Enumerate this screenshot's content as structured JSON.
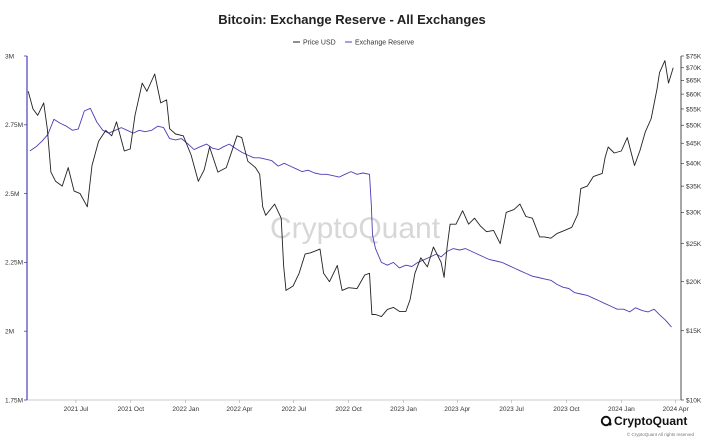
{
  "chart_data": {
    "type": "line",
    "title": "Bitcoin: Exchange Reserve - All Exchanges",
    "legend": [
      "Price USD",
      "Exchange Reserve"
    ],
    "legend_position": "top-center",
    "x_ticks": [
      "2021 Jul",
      "2021 Oct",
      "2022 Jan",
      "2022 Apr",
      "2022 Jul",
      "2022 Oct",
      "2023 Jan",
      "2023 Apr",
      "2023 Jul",
      "2023 Oct",
      "2024 Jan",
      "2024 Apr"
    ],
    "y_left_ticks": [
      "3M",
      "2.75M",
      "2.5M",
      "2.25M",
      "2M",
      "1.75M"
    ],
    "y_right_ticks": [
      "$75K",
      "$70K",
      "$65K",
      "$60K",
      "$55K",
      "$50K",
      "$45K",
      "$40K",
      "$35K",
      "$30K",
      "$25K",
      "$20K",
      "$15K",
      "$10K"
    ],
    "ylim_left": [
      1750000,
      3000000
    ],
    "ylim_right": [
      10000,
      75000
    ],
    "y_right_scale": "log",
    "grid": false,
    "series": [
      {
        "name": "Exchange Reserve",
        "axis": "left",
        "color": "#4b3fb8",
        "x": [
          "2021-04-15",
          "2021-04-25",
          "2021-05-05",
          "2021-05-15",
          "2021-05-25",
          "2021-06-05",
          "2021-06-15",
          "2021-06-25",
          "2021-07-05",
          "2021-07-15",
          "2021-07-25",
          "2021-08-05",
          "2021-08-15",
          "2021-08-25",
          "2021-09-05",
          "2021-09-15",
          "2021-09-25",
          "2021-10-05",
          "2021-10-15",
          "2021-10-25",
          "2021-11-05",
          "2021-11-15",
          "2021-11-25",
          "2021-12-05",
          "2021-12-15",
          "2021-12-25",
          "2022-01-05",
          "2022-01-15",
          "2022-01-25",
          "2022-02-05",
          "2022-02-15",
          "2022-02-25",
          "2022-03-05",
          "2022-03-15",
          "2022-03-25",
          "2022-04-05",
          "2022-04-15",
          "2022-04-25",
          "2022-05-05",
          "2022-05-15",
          "2022-05-25",
          "2022-06-05",
          "2022-06-15",
          "2022-06-25",
          "2022-07-05",
          "2022-07-15",
          "2022-07-25",
          "2022-08-05",
          "2022-08-15",
          "2022-08-25",
          "2022-09-05",
          "2022-09-15",
          "2022-09-25",
          "2022-10-05",
          "2022-10-15",
          "2022-10-25",
          "2022-11-05",
          "2022-11-08",
          "2022-11-10",
          "2022-11-15",
          "2022-11-25",
          "2022-12-05",
          "2022-12-15",
          "2022-12-25",
          "2023-01-05",
          "2023-01-15",
          "2023-01-25",
          "2023-02-05",
          "2023-02-15",
          "2023-02-25",
          "2023-03-05",
          "2023-03-15",
          "2023-03-25",
          "2023-04-05",
          "2023-04-15",
          "2023-04-25",
          "2023-05-05",
          "2023-05-15",
          "2023-05-25",
          "2023-06-05",
          "2023-06-15",
          "2023-06-25",
          "2023-07-05",
          "2023-07-15",
          "2023-07-25",
          "2023-08-05",
          "2023-08-15",
          "2023-08-25",
          "2023-09-05",
          "2023-09-15",
          "2023-09-25",
          "2023-10-05",
          "2023-10-15",
          "2023-10-25",
          "2023-11-05",
          "2023-11-15",
          "2023-11-25",
          "2023-12-05",
          "2023-12-15",
          "2023-12-25",
          "2024-01-05",
          "2024-01-15",
          "2024-01-25",
          "2024-02-05",
          "2024-02-15",
          "2024-02-25",
          "2024-03-05",
          "2024-03-15",
          "2024-03-25"
        ],
        "values": [
          2655000,
          2670000,
          2690000,
          2715000,
          2770000,
          2755000,
          2745000,
          2730000,
          2735000,
          2800000,
          2810000,
          2760000,
          2730000,
          2720000,
          2730000,
          2740000,
          2730000,
          2720000,
          2730000,
          2725000,
          2730000,
          2745000,
          2740000,
          2700000,
          2695000,
          2700000,
          2680000,
          2660000,
          2670000,
          2680000,
          2665000,
          2660000,
          2670000,
          2680000,
          2665000,
          2650000,
          2640000,
          2630000,
          2630000,
          2625000,
          2620000,
          2600000,
          2610000,
          2600000,
          2590000,
          2580000,
          2585000,
          2575000,
          2570000,
          2570000,
          2565000,
          2560000,
          2570000,
          2580000,
          2570000,
          2575000,
          2570000,
          2460000,
          2350000,
          2300000,
          2250000,
          2240000,
          2250000,
          2230000,
          2240000,
          2235000,
          2250000,
          2260000,
          2270000,
          2280000,
          2270000,
          2290000,
          2300000,
          2295000,
          2300000,
          2290000,
          2280000,
          2270000,
          2260000,
          2255000,
          2250000,
          2240000,
          2230000,
          2220000,
          2210000,
          2200000,
          2195000,
          2190000,
          2185000,
          2170000,
          2160000,
          2155000,
          2140000,
          2135000,
          2130000,
          2120000,
          2110000,
          2100000,
          2090000,
          2080000,
          2080000,
          2070000,
          2085000,
          2075000,
          2070000,
          2080000,
          2060000,
          2040000,
          2015000
        ]
      },
      {
        "name": "Price USD",
        "axis": "right",
        "color": "#222222",
        "x": [
          "2021-04-12",
          "2021-04-20",
          "2021-04-28",
          "2021-05-08",
          "2021-05-14",
          "2021-05-20",
          "2021-05-28",
          "2021-06-08",
          "2021-06-18",
          "2021-06-28",
          "2021-07-08",
          "2021-07-20",
          "2021-07-28",
          "2021-08-08",
          "2021-08-20",
          "2021-08-30",
          "2021-09-07",
          "2021-09-20",
          "2021-09-30",
          "2021-10-08",
          "2021-10-20",
          "2021-10-28",
          "2021-11-10",
          "2021-11-20",
          "2021-11-30",
          "2021-12-05",
          "2021-12-15",
          "2021-12-28",
          "2022-01-10",
          "2022-01-22",
          "2022-02-01",
          "2022-02-10",
          "2022-02-24",
          "2022-03-10",
          "2022-03-28",
          "2022-04-05",
          "2022-04-15",
          "2022-04-28",
          "2022-05-05",
          "2022-05-10",
          "2022-05-15",
          "2022-05-30",
          "2022-06-10",
          "2022-06-14",
          "2022-06-18",
          "2022-06-30",
          "2022-07-10",
          "2022-07-20",
          "2022-07-30",
          "2022-08-14",
          "2022-08-20",
          "2022-08-30",
          "2022-09-12",
          "2022-09-20",
          "2022-10-01",
          "2022-10-15",
          "2022-10-28",
          "2022-11-05",
          "2022-11-09",
          "2022-11-15",
          "2022-11-25",
          "2022-12-05",
          "2022-12-15",
          "2022-12-25",
          "2023-01-05",
          "2023-01-12",
          "2023-01-20",
          "2023-01-30",
          "2023-02-10",
          "2023-02-20",
          "2023-03-05",
          "2023-03-10",
          "2023-03-15",
          "2023-03-20",
          "2023-03-30",
          "2023-04-10",
          "2023-04-20",
          "2023-04-30",
          "2023-05-10",
          "2023-05-20",
          "2023-06-01",
          "2023-06-12",
          "2023-06-22",
          "2023-07-05",
          "2023-07-15",
          "2023-07-25",
          "2023-08-05",
          "2023-08-17",
          "2023-08-25",
          "2023-09-05",
          "2023-09-15",
          "2023-09-28",
          "2023-10-10",
          "2023-10-20",
          "2023-10-25",
          "2023-11-05",
          "2023-11-15",
          "2023-11-30",
          "2023-12-05",
          "2023-12-10",
          "2023-12-20",
          "2024-01-01",
          "2024-01-11",
          "2024-01-23",
          "2024-02-01",
          "2024-02-10",
          "2024-02-20",
          "2024-03-01",
          "2024-03-05",
          "2024-03-14",
          "2024-03-20",
          "2024-03-28"
        ],
        "values": [
          61000,
          55000,
          53000,
          57000,
          49000,
          38000,
          36000,
          35000,
          39000,
          34000,
          33500,
          31000,
          39500,
          45500,
          48500,
          47000,
          51000,
          43000,
          43500,
          53000,
          64000,
          61000,
          67500,
          57000,
          58000,
          49000,
          47500,
          47000,
          42000,
          36000,
          38500,
          44000,
          38000,
          39000,
          47000,
          46500,
          40500,
          39000,
          37500,
          31000,
          29500,
          31500,
          29000,
          22000,
          19000,
          19500,
          21000,
          23500,
          23700,
          24200,
          21000,
          20000,
          22000,
          19000,
          19300,
          19200,
          20800,
          21000,
          16500,
          16500,
          16300,
          17000,
          17200,
          16800,
          16800,
          18000,
          21000,
          23000,
          21800,
          24500,
          22400,
          20500,
          24500,
          28000,
          28000,
          30300,
          28000,
          29000,
          27700,
          26800,
          27000,
          25000,
          30000,
          30500,
          31500,
          29300,
          29000,
          26000,
          26000,
          25800,
          26500,
          27000,
          27500,
          29700,
          34500,
          35000,
          37000,
          37700,
          41500,
          44000,
          42500,
          43000,
          46500,
          39500,
          43000,
          48000,
          52000,
          62000,
          68000,
          73000,
          64000,
          70000
        ]
      }
    ]
  },
  "watermark": "CryptoQuant",
  "footer": {
    "brand": "CryptoQuant",
    "copyright": "© CryptoQuant All rights reserved"
  }
}
